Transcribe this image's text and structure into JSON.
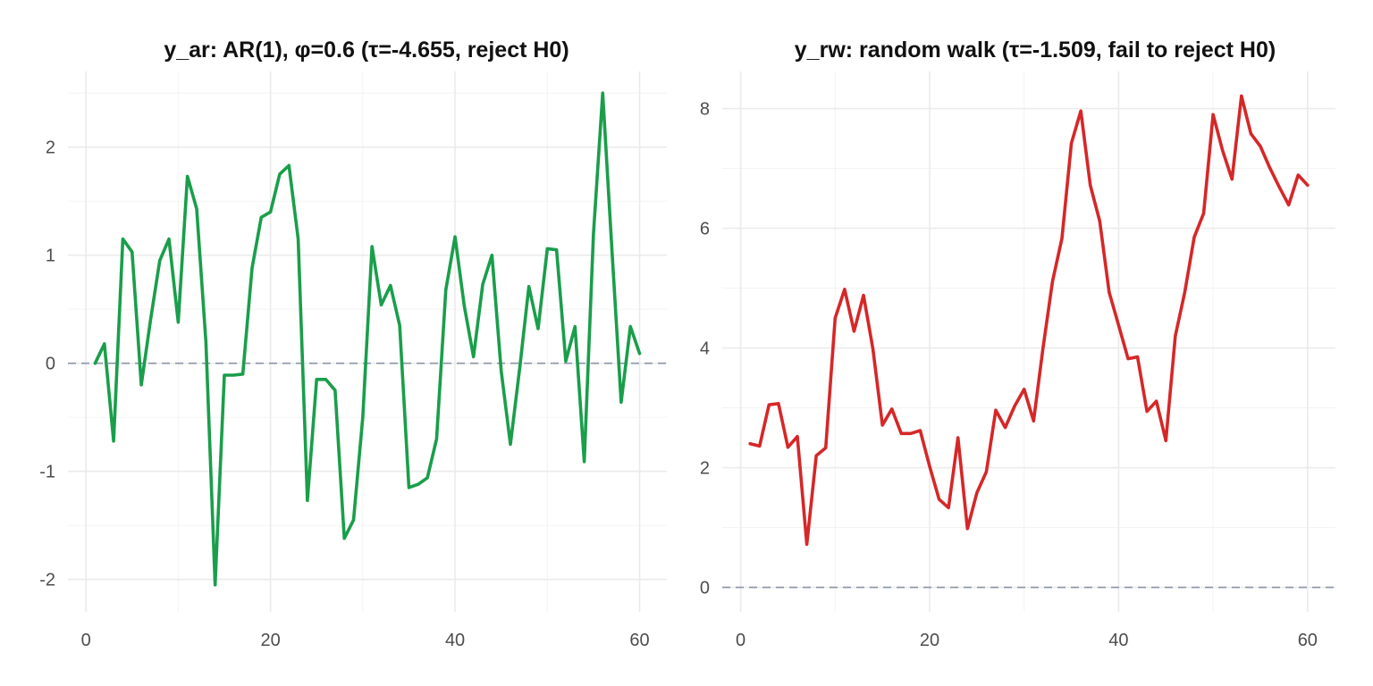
{
  "chart_data": [
    {
      "type": "line",
      "title": "y_ar: AR(1), φ=0.6 (τ=-4.655, reject H0)",
      "xlabel": "",
      "ylabel": "",
      "x": [
        1,
        2,
        3,
        4,
        5,
        6,
        7,
        8,
        9,
        10,
        11,
        12,
        13,
        14,
        15,
        16,
        17,
        18,
        19,
        20,
        21,
        22,
        23,
        24,
        25,
        26,
        27,
        28,
        29,
        30,
        31,
        32,
        33,
        34,
        35,
        36,
        37,
        38,
        39,
        40,
        41,
        42,
        43,
        44,
        45,
        46,
        47,
        48,
        49,
        50,
        51,
        52,
        53,
        54,
        55,
        56,
        57,
        58,
        59,
        60
      ],
      "series": [
        {
          "color": "#1a9e4b",
          "values": [
            0.0,
            0.18,
            -0.72,
            1.15,
            1.03,
            -0.2,
            0.4,
            0.95,
            1.15,
            0.38,
            1.73,
            1.43,
            0.2,
            -2.05,
            -0.11,
            -0.11,
            -0.1,
            0.88,
            1.35,
            1.4,
            1.75,
            1.83,
            1.15,
            -1.27,
            -0.15,
            -0.15,
            -0.25,
            -1.62,
            -1.45,
            -0.5,
            1.08,
            0.54,
            0.72,
            0.35,
            -1.15,
            -1.12,
            -1.06,
            -0.7,
            0.68,
            1.17,
            0.53,
            0.06,
            0.73,
            1.0,
            -0.07,
            -0.75,
            -0.05,
            0.71,
            0.32,
            1.06,
            1.05,
            0.02,
            0.34,
            -0.91,
            1.2,
            2.5,
            1.05,
            -0.36,
            0.34,
            0.09
          ]
        }
      ],
      "xlim": [
        -1.95,
        62.95
      ],
      "ylim": [
        -2.3,
        2.7
      ],
      "xticks": [
        0,
        20,
        40,
        60
      ],
      "yticks": [
        -2,
        -1,
        0,
        1,
        2
      ],
      "xtick_labels": [
        "0",
        "20",
        "40",
        "60"
      ],
      "ytick_labels": [
        "-2",
        "-1",
        "0",
        "1",
        "2"
      ],
      "reference_line": {
        "y": 0,
        "style": "dashed",
        "color": "#8a93a8"
      },
      "grid": true,
      "legend": "none"
    },
    {
      "type": "line",
      "title": "y_rw: random walk (τ=-1.509, fail to reject H0)",
      "xlabel": "",
      "ylabel": "",
      "x": [
        1,
        2,
        3,
        4,
        5,
        6,
        7,
        8,
        9,
        10,
        11,
        12,
        13,
        14,
        15,
        16,
        17,
        18,
        19,
        20,
        21,
        22,
        23,
        24,
        25,
        26,
        27,
        28,
        29,
        30,
        31,
        32,
        33,
        34,
        35,
        36,
        37,
        38,
        39,
        40,
        41,
        42,
        43,
        44,
        45,
        46,
        47,
        48,
        49,
        50,
        51,
        52,
        53,
        54,
        55,
        56,
        57,
        58,
        59,
        60
      ],
      "series": [
        {
          "color": "#d62728",
          "values": [
            2.4,
            2.36,
            3.05,
            3.07,
            2.34,
            2.52,
            0.72,
            2.2,
            2.33,
            4.5,
            4.98,
            4.28,
            4.88,
            3.98,
            2.71,
            2.98,
            2.57,
            2.57,
            2.62,
            2.02,
            1.47,
            1.33,
            2.5,
            0.98,
            1.58,
            1.93,
            2.96,
            2.67,
            3.03,
            3.31,
            2.78,
            4.0,
            5.11,
            5.83,
            7.42,
            7.96,
            6.72,
            6.12,
            4.93,
            4.38,
            3.82,
            3.85,
            2.94,
            3.11,
            2.45,
            4.2,
            4.93,
            5.85,
            6.25,
            7.9,
            7.3,
            6.82,
            8.21,
            7.58,
            7.37,
            7.01,
            6.69,
            6.39,
            6.89,
            6.72
          ]
        }
      ],
      "xlim": [
        -1.95,
        62.95
      ],
      "ylim": [
        -0.41,
        8.62
      ],
      "xticks": [
        0,
        20,
        40,
        60
      ],
      "yticks": [
        0,
        2,
        4,
        6,
        8
      ],
      "xtick_labels": [
        "0",
        "20",
        "40",
        "60"
      ],
      "ytick_labels": [
        "0",
        "2",
        "4",
        "6",
        "8"
      ],
      "reference_line": {
        "y": 0,
        "style": "dashed",
        "color": "#8a93a8"
      },
      "grid": true,
      "legend": "none"
    }
  ]
}
